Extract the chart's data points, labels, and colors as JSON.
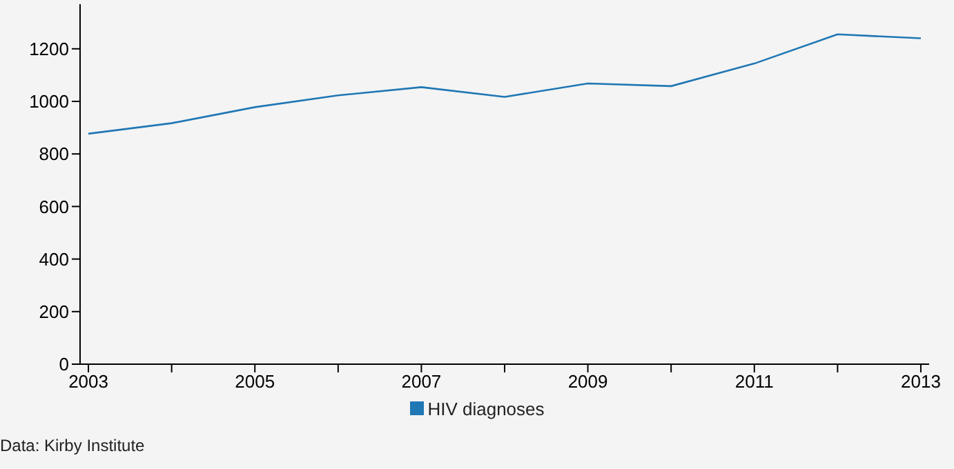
{
  "chart_data": {
    "type": "line",
    "x": [
      2003,
      2004,
      2005,
      2006,
      2007,
      2008,
      2009,
      2010,
      2011,
      2012,
      2013
    ],
    "series": [
      {
        "name": "HIV diagnoses",
        "color": "#1f77b4",
        "values": [
          877,
          917,
          978,
          1023,
          1054,
          1017,
          1068,
          1058,
          1144,
          1255,
          1240
        ]
      }
    ],
    "xlim": [
      2002.9,
      2013.1
    ],
    "xticks": [
      2003,
      {
        "value": 2004,
        "label": null
      },
      2005,
      {
        "value": 2006,
        "label": null
      },
      2007,
      {
        "value": 2008,
        "label": null
      },
      2009,
      {
        "value": 2010,
        "label": null
      },
      2011,
      {
        "value": 2012,
        "label": null
      },
      2013
    ],
    "ylim": [
      0,
      1370
    ],
    "yticks": [
      0,
      200,
      400,
      600,
      800,
      1000,
      1200
    ],
    "grid": false,
    "legend": "bottom",
    "marker": "none",
    "line_style": "solid",
    "annotations": [
      "Data: Kirby Institute"
    ]
  }
}
